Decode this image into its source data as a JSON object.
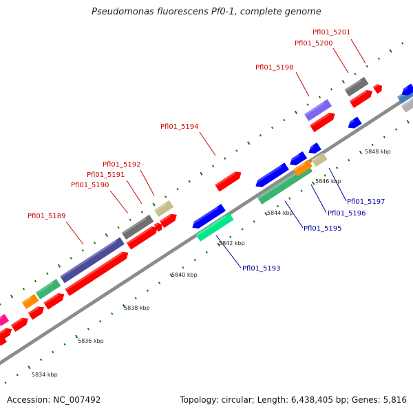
{
  "title": "Pseudomonas fluorescens Pf0-1, complete genome",
  "footer": {
    "accession": "Accession: NC_007492",
    "info": "Topology: circular; Length: 6,438,405 bp; Genes: 5,816"
  },
  "colors": {
    "forward_label": "#cc0000",
    "reverse_label": "#000099",
    "backbone": "#8c8c8c",
    "tick": "#0a7a0a"
  },
  "kbp_labels": [
    {
      "text": "5834 kbp"
    },
    {
      "text": "5836 kbp"
    },
    {
      "text": "5838 kbp"
    },
    {
      "text": "5840 kbp"
    },
    {
      "text": "5842 kbp"
    },
    {
      "text": "5844 kbp"
    },
    {
      "text": "5846 kbp"
    },
    {
      "text": "5848 kbp"
    }
  ],
  "gene_labels": [
    {
      "text": "Pfl01_5201",
      "strand": "forward"
    },
    {
      "text": "Pfl01_5200",
      "strand": "forward"
    },
    {
      "text": "Pfl01_5198",
      "strand": "forward"
    },
    {
      "text": "Pfl01_5194",
      "strand": "forward"
    },
    {
      "text": "Pfl01_5192",
      "strand": "forward"
    },
    {
      "text": "Pfl01_5191",
      "strand": "forward"
    },
    {
      "text": "Pfl01_5190",
      "strand": "forward"
    },
    {
      "text": "Pfl01_5189",
      "strand": "forward"
    },
    {
      "text": "Pfl01_5193",
      "strand": "reverse"
    },
    {
      "text": "Pfl01_5195",
      "strand": "reverse"
    },
    {
      "text": "Pfl01_5196",
      "strand": "reverse"
    },
    {
      "text": "Pfl01_5197",
      "strand": "reverse"
    }
  ]
}
